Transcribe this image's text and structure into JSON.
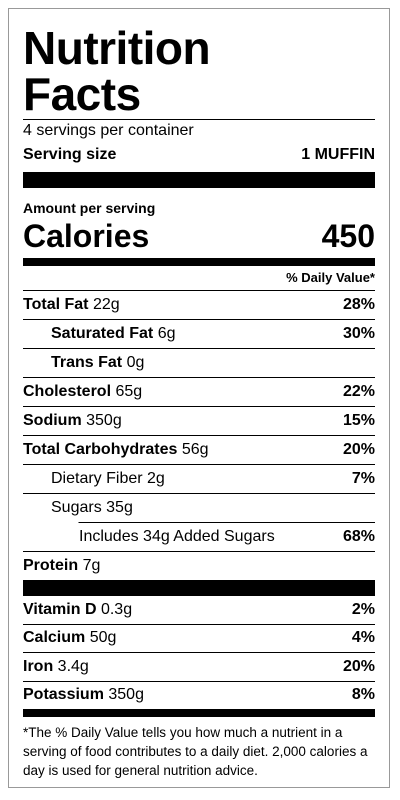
{
  "header": {
    "title": "Nutrition Facts",
    "servings": "4 servings per container",
    "serving_size": {
      "label": "Serving size",
      "value": "1 MUFFIN"
    }
  },
  "calories_section": {
    "amount_per_serving": "Amount per serving",
    "label": "Calories",
    "value": 450
  },
  "daily_value_header": "% Daily Value*",
  "nutrients": [
    {
      "name": "Total Fat",
      "amount": "22g",
      "dv": "28%",
      "bold": true,
      "indent": 0
    },
    {
      "name": "Saturated Fat",
      "amount": "6g",
      "dv": "30%",
      "bold": true,
      "indent": 1
    },
    {
      "name": "Trans Fat",
      "amount": "0g",
      "bold": true,
      "indent": 1
    },
    {
      "name": "Cholesterol",
      "amount": "65g",
      "dv": "22%",
      "bold": true,
      "indent": 0
    },
    {
      "name": "Sodium",
      "amount": "350g",
      "dv": "15%",
      "bold": true,
      "indent": 0
    },
    {
      "name": "Total Carbohydrates",
      "amount": "56g",
      "dv": "20%",
      "bold": true,
      "indent": 0
    },
    {
      "name": "Dietary Fiber",
      "amount": "2g",
      "dv": "7%",
      "bold": false,
      "indent": 1
    },
    {
      "name": "Sugars",
      "amount": "35g",
      "bold": false,
      "indent": 1
    },
    {
      "name": "Includes 34g Added Sugars",
      "dv": "68%",
      "bold": false,
      "indent": 2
    },
    {
      "name": "Protein",
      "amount": "7g",
      "bold": true,
      "indent": 0
    }
  ],
  "vitamins": [
    {
      "name": "Vitamin D",
      "amount": "0.3g",
      "dv": "2%"
    },
    {
      "name": "Calcium",
      "amount": "50g",
      "dv": "4%"
    },
    {
      "name": "Iron",
      "amount": "3.4g",
      "dv": "20%"
    },
    {
      "name": "Potassium",
      "amount": "350g",
      "dv": "8%"
    }
  ],
  "footnote": "*The % Daily Value tells you how much a nutrient in a serving of food contributes to a daily diet. 2,000 calories a day is used for general nutrition advice."
}
